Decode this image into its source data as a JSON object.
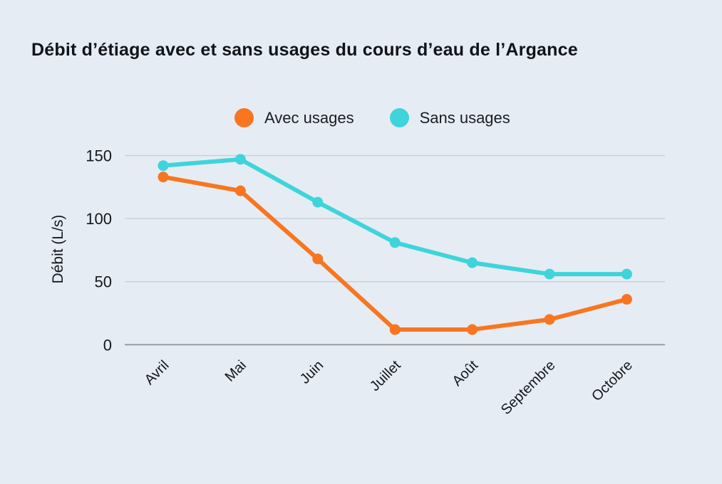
{
  "title": "Débit d’étiage avec et sans usages du cours d’eau de l’Argance",
  "legend": [
    {
      "label": "Avec usages",
      "color": "#f8761f"
    },
    {
      "label": "Sans usages",
      "color": "#3fd4db"
    }
  ],
  "colors": {
    "background": "#e6ecf4",
    "gridline": "#c9ced7",
    "axis_line": "#999fa8",
    "text": "#14161a",
    "avec_usages": "#f8761f",
    "sans_usages": "#3fd4db"
  },
  "chart_data": {
    "type": "line",
    "title": "Débit d’étiage avec et sans usages du cours d’eau de l’Argance",
    "categories": [
      "Avril",
      "Mai",
      "Juin",
      "Juillet",
      "Août",
      "Septembre",
      "Octobre"
    ],
    "series": [
      {
        "name": "Avec usages",
        "color": "#f8761f",
        "values": [
          133,
          122,
          68,
          12,
          12,
          20,
          36
        ]
      },
      {
        "name": "Sans usages",
        "color": "#3fd4db",
        "values": [
          142,
          147,
          113,
          81,
          65,
          56,
          56
        ]
      }
    ],
    "xlabel": "",
    "ylabel": "Débit (L/s)",
    "yticks": [
      0,
      50,
      100,
      150
    ],
    "ylim": [
      0,
      150
    ],
    "grid": true,
    "legend_position": "top-center",
    "marker": "circle"
  }
}
